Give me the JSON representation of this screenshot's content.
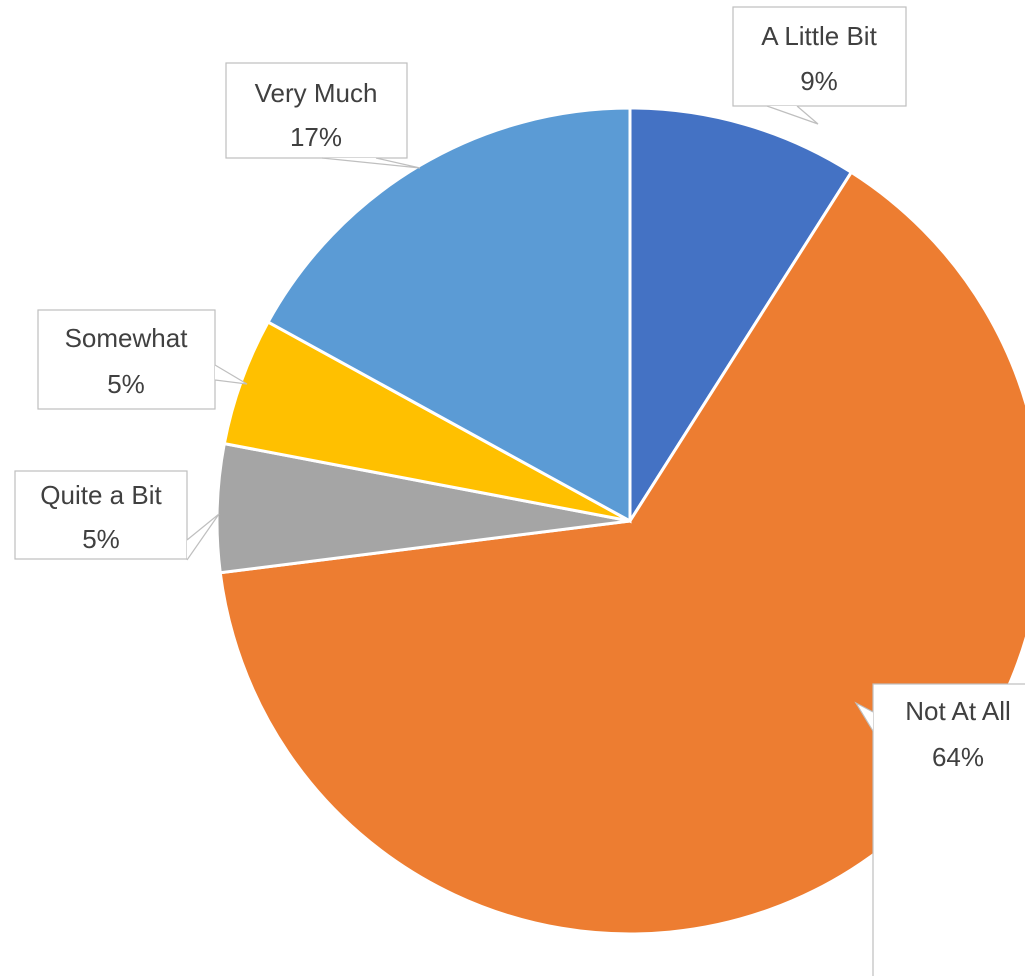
{
  "chart_data": {
    "type": "pie",
    "title": "",
    "start_angle_deg": 0,
    "direction": "clockwise",
    "slices": [
      {
        "label": "A Little Bit",
        "value": 9,
        "percent_label": "9%",
        "color": "#4472C4"
      },
      {
        "label": "Not At All",
        "value": 64,
        "percent_label": "64%",
        "color": "#ED7D31"
      },
      {
        "label": "Quite a Bit",
        "value": 5,
        "percent_label": "5%",
        "color": "#A5A5A5"
      },
      {
        "label": "Somewhat",
        "value": 5,
        "percent_label": "5%",
        "color": "#FFC000"
      },
      {
        "label": "Very Much",
        "value": 17,
        "percent_label": "17%",
        "color": "#5B9BD5"
      }
    ],
    "data_labels": "callout",
    "legend": "none"
  }
}
